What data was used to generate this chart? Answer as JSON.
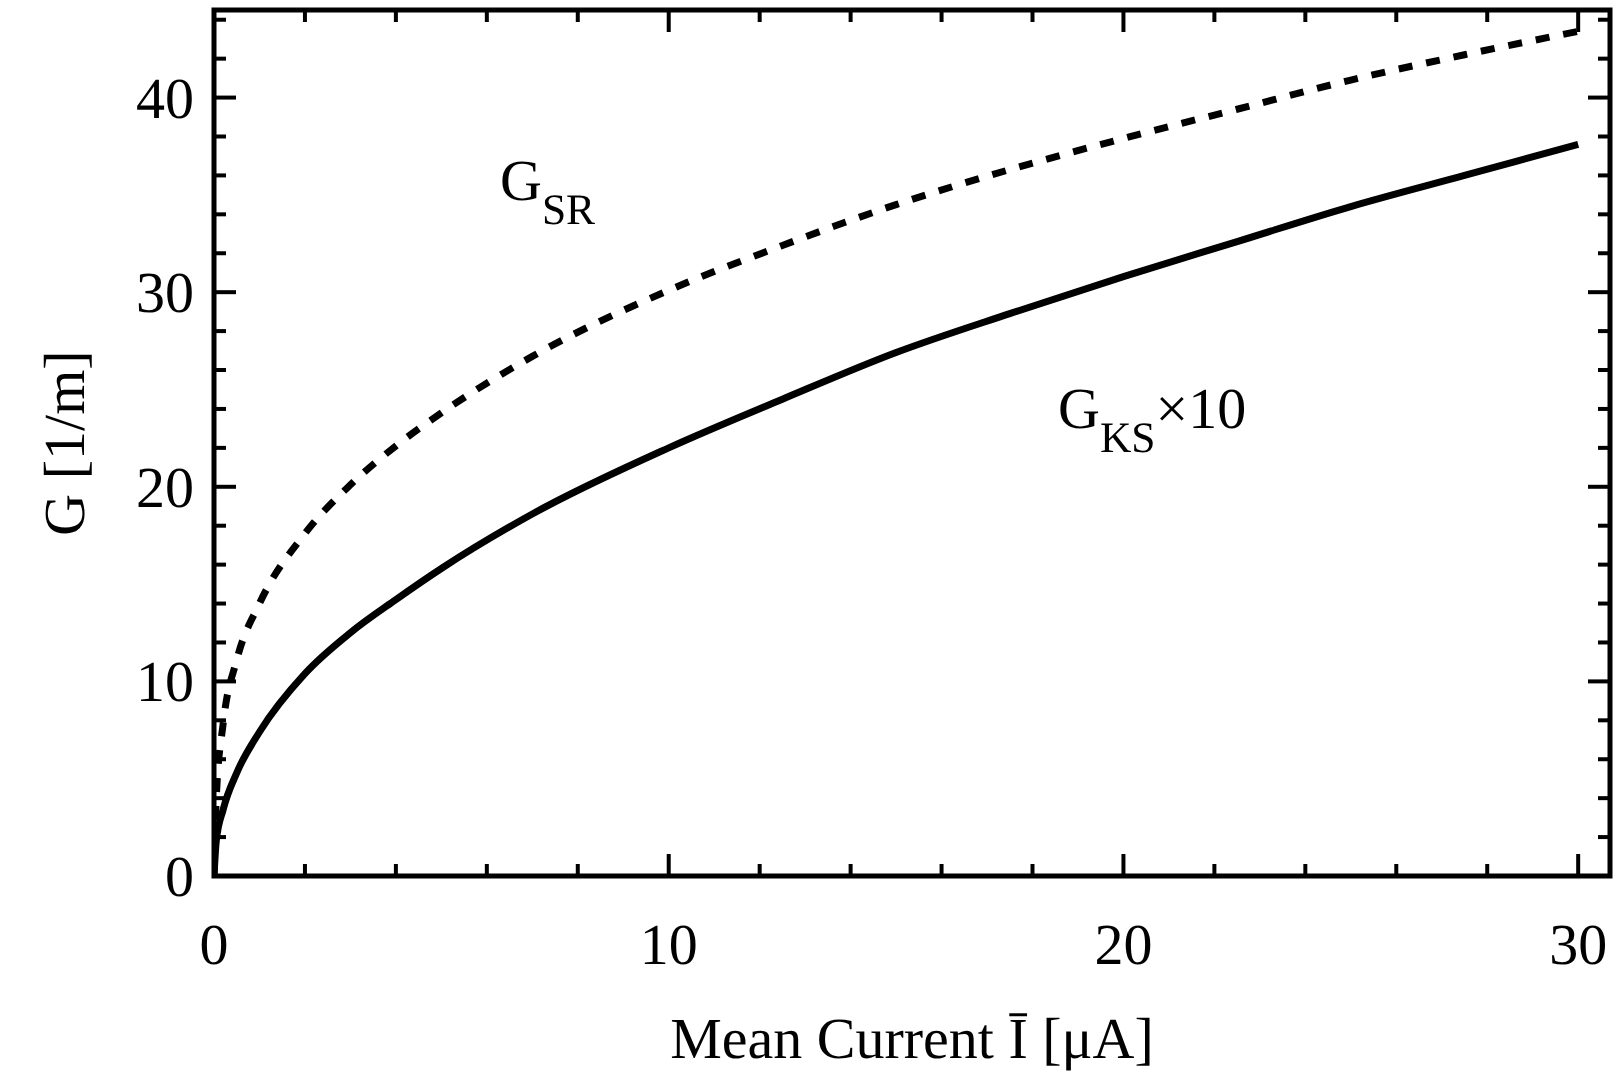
{
  "chart_data": {
    "type": "line",
    "xlabel": "Mean Current Ī [μA]",
    "ylabel": "G [1/m]",
    "xlim": [
      0,
      30.7
    ],
    "ylim": [
      0,
      44.5
    ],
    "xticks": [
      0,
      {
        "value": 2,
        "label": null
      },
      {
        "value": 4,
        "label": null
      },
      {
        "value": 6,
        "label": null
      },
      {
        "value": 8,
        "label": null
      },
      10,
      {
        "value": 12,
        "label": null
      },
      {
        "value": 14,
        "label": null
      },
      {
        "value": 16,
        "label": null
      },
      {
        "value": 18,
        "label": null
      },
      20,
      {
        "value": 22,
        "label": null
      },
      {
        "value": 24,
        "label": null
      },
      {
        "value": 26,
        "label": null
      },
      {
        "value": 28,
        "label": null
      },
      30
    ],
    "yticks": [
      0,
      {
        "value": 2,
        "label": null
      },
      {
        "value": 4,
        "label": null
      },
      {
        "value": 6,
        "label": null
      },
      {
        "value": 8,
        "label": null
      },
      10,
      {
        "value": 12,
        "label": null
      },
      {
        "value": 14,
        "label": null
      },
      {
        "value": 16,
        "label": null
      },
      {
        "value": 18,
        "label": null
      },
      20,
      {
        "value": 22,
        "label": null
      },
      {
        "value": 24,
        "label": null
      },
      {
        "value": 26,
        "label": null
      },
      {
        "value": 28,
        "label": null
      },
      30,
      {
        "value": 32,
        "label": null
      },
      {
        "value": 34,
        "label": null
      },
      {
        "value": 36,
        "label": null
      },
      {
        "value": 38,
        "label": null
      },
      40,
      {
        "value": 42,
        "label": null
      },
      {
        "value": 44,
        "label": null
      }
    ],
    "grid": false,
    "series": [
      {
        "name": "G$_{SR}$",
        "color": "#000000",
        "line_style": "dotted",
        "x": [
          0,
          0.05,
          0.2,
          0.5,
          1,
          2,
          3,
          4,
          5,
          7,
          10,
          12.5,
          15,
          17.5,
          20,
          22.5,
          25,
          27.5,
          30
        ],
        "values": [
          0,
          4,
          7.8,
          11.1,
          14,
          17.6,
          20.1,
          22.1,
          23.8,
          26.7,
          30.1,
          32.4,
          34.5,
          36.3,
          37.9,
          39.4,
          40.9,
          42.2,
          43.4
        ]
      },
      {
        "name": "G$_{KS}$×10",
        "color": "#000000",
        "line_style": "solid",
        "x": [
          0,
          0.05,
          0.2,
          0.5,
          1,
          2,
          3,
          4,
          5,
          7,
          10,
          12.5,
          15,
          17.5,
          20,
          22.5,
          25,
          27.5,
          30
        ],
        "values": [
          0,
          1.8,
          3.4,
          5.3,
          7.4,
          10.4,
          12.5,
          14.2,
          15.8,
          18.6,
          22.0,
          24.5,
          26.9,
          28.9,
          30.8,
          32.6,
          34.4,
          36,
          37.6
        ]
      }
    ]
  }
}
